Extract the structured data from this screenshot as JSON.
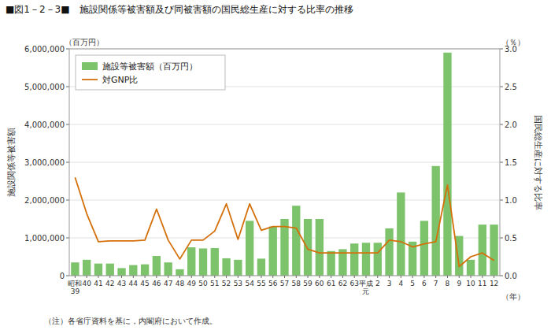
{
  "chart_data": {
    "type": "bar",
    "title": "■図1－2－3■　施設関係等被害額及び同被害額の国民総生産に対する比率の推移",
    "y_label": "施設関係等被害額",
    "y2_label": "国民総生産に対する比率",
    "x_label": "（年）",
    "y_unit_label": "（百万円）",
    "y2_unit_label": "（％）",
    "note": "（注）各省庁資料を基に，内閣府において作成。",
    "categories": [
      "昭和\n39",
      "40",
      "41",
      "42",
      "43",
      "44",
      "45",
      "46",
      "47",
      "48",
      "49",
      "50",
      "51",
      "52",
      "53",
      "54",
      "55",
      "56",
      "57",
      "58",
      "59",
      "60",
      "61",
      "62",
      "63",
      "平成\n元",
      "2",
      "3",
      "4",
      "5",
      "6",
      "7",
      "8",
      "9",
      "10",
      "11",
      "12"
    ],
    "series": [
      {
        "name": "施設等被害額（百万円）",
        "type": "bar",
        "color": "#7dc36b",
        "values": [
          350000,
          420000,
          320000,
          320000,
          200000,
          280000,
          300000,
          520000,
          350000,
          170000,
          750000,
          720000,
          730000,
          460000,
          420000,
          1450000,
          450000,
          1300000,
          1500000,
          1850000,
          1500000,
          1500000,
          650000,
          700000,
          850000,
          870000,
          870000,
          1250000,
          2200000,
          900000,
          1450000,
          2900000,
          5900000,
          1050000,
          420000,
          1350000,
          1350000
        ]
      },
      {
        "name": "対GNP比",
        "type": "line",
        "axis": "y2",
        "color": "#d4700a",
        "values": [
          1.3,
          0.82,
          0.45,
          0.46,
          0.46,
          0.46,
          0.47,
          0.88,
          0.47,
          0.22,
          0.47,
          0.47,
          0.59,
          0.95,
          0.48,
          0.95,
          0.6,
          0.65,
          0.65,
          0.63,
          0.35,
          0.3,
          0.3,
          0.3,
          0.3,
          0.3,
          0.3,
          0.47,
          0.45,
          0.38,
          0.42,
          0.45,
          1.2,
          0.12,
          0.25,
          0.3,
          0.2
        ]
      }
    ],
    "ylim": [
      0,
      6000000
    ],
    "yticks": [
      0,
      {
        "value": 1000000,
        "label": "1,000,000"
      },
      {
        "value": 2000000,
        "label": "2,000,000"
      },
      {
        "value": 3000000,
        "label": "3,000,000"
      },
      {
        "value": 4000000,
        "label": "4,000,000"
      },
      {
        "value": 5000000,
        "label": "5,000,000"
      },
      {
        "value": 6000000,
        "label": "6,000,000"
      }
    ],
    "y2lim": [
      0,
      3.0
    ],
    "y2ticks": [
      {
        "value": 0.0,
        "label": "0.0"
      },
      {
        "value": 0.5,
        "label": "0.5"
      },
      {
        "value": 1.0,
        "label": "1.0"
      },
      {
        "value": 1.5,
        "label": "1.5"
      },
      {
        "value": 2.0,
        "label": "2.0"
      },
      {
        "value": 2.5,
        "label": "2.5"
      },
      {
        "value": 3.0,
        "label": "3.0"
      }
    ],
    "grid": true,
    "legend": "upper left"
  }
}
